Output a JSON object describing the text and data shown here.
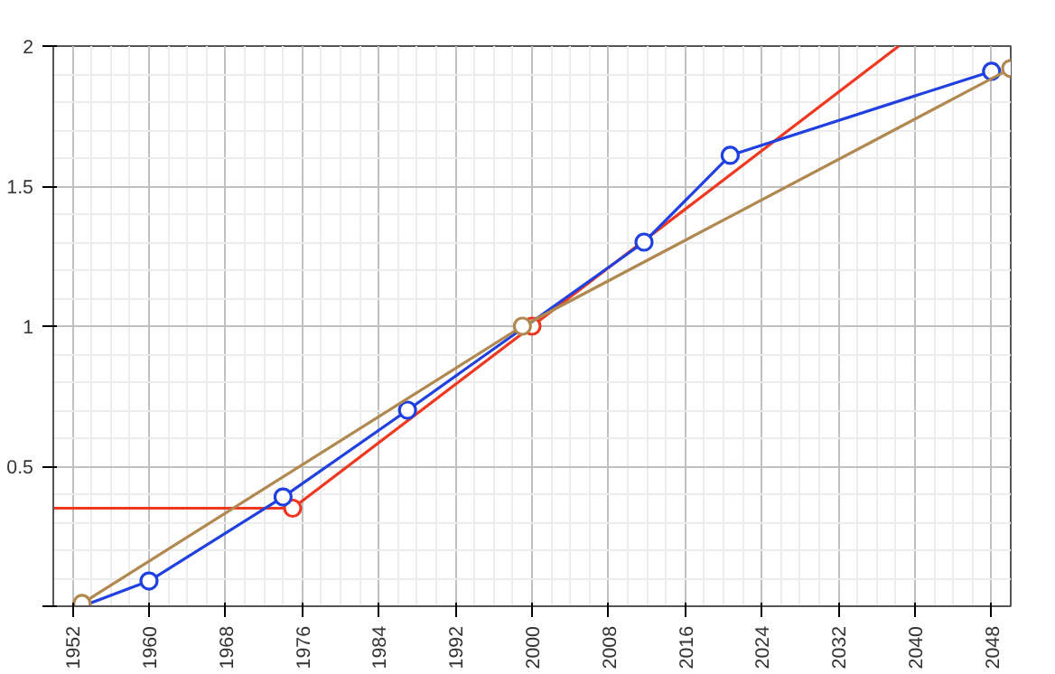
{
  "chart_data": {
    "type": "line",
    "xlim": [
      1950,
      2050
    ],
    "ylim": [
      0,
      2
    ],
    "xticks": [
      1952,
      1960,
      1968,
      1976,
      1984,
      1992,
      2000,
      2008,
      2016,
      2024,
      2032,
      2040,
      2048
    ],
    "yticks": [
      {
        "value": 0,
        "label": null
      },
      0.5,
      1,
      1.5,
      2
    ],
    "grid": true,
    "marker": "circle",
    "line_style": "solid",
    "series": [
      {
        "color": "#f03820",
        "marker": "none",
        "x": [
          1950,
          1975,
          2000,
          2038.3
        ],
        "values": [
          0.35,
          0.35,
          1.0,
          2.0
        ]
      },
      {
        "color": "#f03820",
        "type": "scatter",
        "x": [
          1975,
          2000
        ],
        "values": [
          0.35,
          1.0
        ]
      },
      {
        "color": "#2040e0",
        "x": [
          1953,
          1960,
          1974,
          1987,
          2011.7,
          2020.7,
          2048
        ],
        "values": [
          0.0,
          0.09,
          0.39,
          0.7,
          1.3,
          1.61,
          1.91
        ]
      },
      {
        "color": "#b08850",
        "x": [
          1953,
          1999,
          2050
        ],
        "values": [
          0.01,
          1.0,
          1.92
        ]
      }
    ]
  }
}
